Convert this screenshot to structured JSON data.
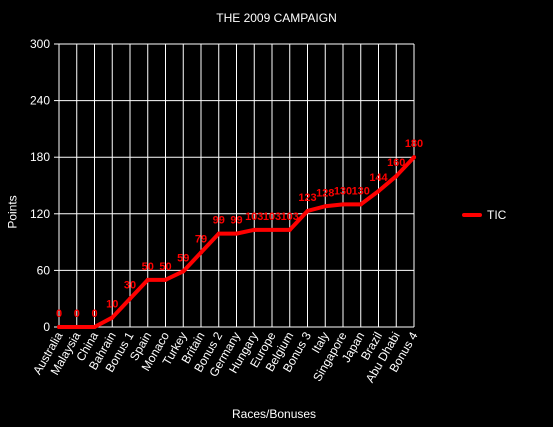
{
  "chart_data": {
    "type": "line",
    "title": "THE 2009 CAMPAIGN",
    "xlabel": "Races/Bonuses",
    "ylabel": "Points",
    "ylim": [
      0,
      300
    ],
    "yticks": [
      0,
      60,
      120,
      180,
      240,
      300
    ],
    "grid": true,
    "legend_position": "right",
    "categories": [
      "Australia",
      "Malaysia",
      "China",
      "Bahrain",
      "Bonus 1",
      "Spain",
      "Monaco",
      "Turkey",
      "Britain",
      "Bonus 2",
      "Germany",
      "Hungary",
      "Europe",
      "Belgium",
      "Bonus 3",
      "Italy",
      "Singapore",
      "Japan",
      "Brazil",
      "Abu Dhabi",
      "Bonus 4"
    ],
    "series": [
      {
        "name": "TIC",
        "color": "#ff0000",
        "values": [
          0,
          0,
          0,
          10,
          30,
          50,
          50,
          59,
          79,
          99,
          99,
          103,
          103,
          103,
          123,
          128,
          130,
          130,
          144,
          160,
          180
        ],
        "labels": [
          "0",
          "0",
          "0",
          "10",
          "30",
          "50",
          "50",
          "59",
          "79",
          "99",
          "99",
          "103",
          "103",
          "103",
          "123",
          "128",
          "130",
          "130",
          "144",
          "160",
          "180"
        ]
      }
    ]
  },
  "colors": {
    "background": "#000000",
    "axis": "#ffffff",
    "grid": "#ffffff",
    "text": "#ffffff",
    "series": "#ff0000"
  }
}
